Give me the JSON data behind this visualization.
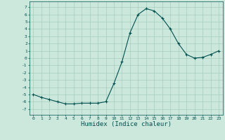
{
  "x": [
    0,
    1,
    2,
    3,
    4,
    5,
    6,
    7,
    8,
    9,
    10,
    11,
    12,
    13,
    14,
    15,
    16,
    17,
    18,
    19,
    20,
    21,
    22,
    23
  ],
  "y": [
    -5.0,
    -5.4,
    -5.7,
    -6.0,
    -6.3,
    -6.3,
    -6.2,
    -6.2,
    -6.2,
    -6.0,
    -3.5,
    -0.5,
    3.5,
    6.0,
    6.8,
    6.5,
    5.5,
    4.0,
    2.0,
    0.5,
    0.0,
    0.1,
    0.5,
    1.0
  ],
  "xlabel": "Humidex (Indice chaleur)",
  "ylabel": "",
  "title": "",
  "line_color": "#005050",
  "marker": "+",
  "marker_size": 3,
  "linewidth": 0.8,
  "bg_color": "#cce8dc",
  "grid_color": "#9ec8b4",
  "xlim": [
    -0.5,
    23.5
  ],
  "ylim": [
    -7.8,
    7.8
  ],
  "xticks": [
    0,
    1,
    2,
    3,
    4,
    5,
    6,
    7,
    8,
    9,
    10,
    11,
    12,
    13,
    14,
    15,
    16,
    17,
    18,
    19,
    20,
    21,
    22,
    23
  ],
  "yticks": [
    -7,
    -6,
    -5,
    -4,
    -3,
    -2,
    -1,
    0,
    1,
    2,
    3,
    4,
    5,
    6,
    7
  ],
  "tick_fontsize": 4.5,
  "xlabel_fontsize": 6.5
}
